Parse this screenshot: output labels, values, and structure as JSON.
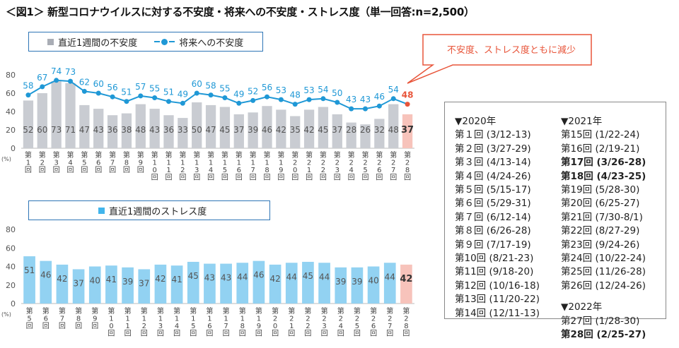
{
  "title": "＜図1＞ 新型コロナウイルスに対する不安度・将来への不安度・ストレス度（単一回答:n=2,500）",
  "callout": "不安度、ストレス度ともに減少",
  "colors": {
    "bar_gray": "#c9ccd2",
    "bar_gray_last": "#f7c3bb",
    "line": "#1f98d6",
    "line_last": "#e8553a",
    "bar_blue": "#92d2f2",
    "bar_blue_last": "#f7c3bb",
    "border": "#2e75b6",
    "callout_border": "#e8553a"
  },
  "legend_top": {
    "bar_label": "直近1週間の不安度",
    "line_label": "将来への不安度"
  },
  "legend_bottom": {
    "bar_label": "直近1週間のストレス度"
  },
  "chart_data": [
    {
      "type": "bar+line",
      "y_unit_label": "(%)",
      "ylim": [
        0,
        80
      ],
      "yticks": [
        "0",
        "20",
        "40",
        "60",
        "80"
      ],
      "categories": [
        "第1回",
        "第2回",
        "第3回",
        "第4回",
        "第5回",
        "第6回",
        "第7回",
        "第8回",
        "第9回",
        "第10回",
        "第11回",
        "第12回",
        "第13回",
        "第14回",
        "第15回",
        "第16回",
        "第17回",
        "第18回",
        "第19回",
        "第20回",
        "第21回",
        "第22回",
        "第23回",
        "第24回",
        "第25回",
        "第26回",
        "第27回",
        "第28回"
      ],
      "series": [
        {
          "name": "直近1週間の不安度",
          "kind": "bar",
          "values": [
            52,
            60,
            73,
            71,
            47,
            43,
            36,
            38,
            48,
            43,
            36,
            33,
            50,
            47,
            45,
            37,
            39,
            46,
            42,
            35,
            42,
            45,
            37,
            28,
            26,
            32,
            48,
            37
          ]
        },
        {
          "name": "将来への不安度",
          "kind": "line",
          "values": [
            58,
            67,
            74,
            73,
            62,
            60,
            56,
            51,
            57,
            55,
            51,
            49,
            60,
            58,
            55,
            49,
            52,
            56,
            53,
            48,
            53,
            54,
            50,
            43,
            43,
            46,
            54,
            48
          ]
        }
      ]
    },
    {
      "type": "bar",
      "y_unit_label": "(%)",
      "ylim": [
        0,
        80
      ],
      "yticks": [
        "0",
        "20",
        "40",
        "60",
        "80"
      ],
      "categories": [
        "第5回",
        "第6回",
        "第7回",
        "第8回",
        "第9回",
        "第10回",
        "第11回",
        "第12回",
        "第13回",
        "第14回",
        "第15回",
        "第16回",
        "第17回",
        "第18回",
        "第19回",
        "第20回",
        "第21回",
        "第22回",
        "第23回",
        "第24回",
        "第25回",
        "第26回",
        "第27回",
        "第28回"
      ],
      "series": [
        {
          "name": "直近1週間のストレス度",
          "values": [
            51,
            46,
            42,
            37,
            40,
            41,
            39,
            37,
            42,
            41,
            45,
            43,
            43,
            44,
            46,
            42,
            44,
            45,
            44,
            39,
            39,
            40,
            44,
            42
          ]
        }
      ]
    }
  ],
  "schedule": {
    "col1": {
      "header": "▼2020年",
      "rows": [
        {
          "label": "第１回",
          "date": "(3/12-13)"
        },
        {
          "label": "第２回",
          "date": "(3/27-29)"
        },
        {
          "label": "第３回",
          "date": "(4/13-14)"
        },
        {
          "label": "第４回",
          "date": "(4/24-26)"
        },
        {
          "label": "第５回",
          "date": "(5/15-17)"
        },
        {
          "label": "第６回",
          "date": "(5/29-31)"
        },
        {
          "label": "第７回",
          "date": "(6/12-14)"
        },
        {
          "label": "第８回",
          "date": "(6/26-28)"
        },
        {
          "label": "第９回",
          "date": "(7/17-19)"
        },
        {
          "label": "第10回",
          "date": "(8/21-23)"
        },
        {
          "label": "第11回",
          "date": "(9/18-20)"
        },
        {
          "label": "第12回",
          "date": "(10/16-18)"
        },
        {
          "label": "第13回",
          "date": "(11/20-22)"
        },
        {
          "label": "第14回",
          "date": "(12/11-13)"
        }
      ]
    },
    "col2": {
      "header": "▼2021年",
      "rows": [
        {
          "label": "第15回",
          "date": "(1/22-24)"
        },
        {
          "label": "第16回",
          "date": "(2/19-21)"
        },
        {
          "label": "第17回",
          "date": "(3/26-28)"
        },
        {
          "label": "第18回",
          "date": "(4/23-25)"
        },
        {
          "label": "第19回",
          "date": "(5/28-30)"
        },
        {
          "label": "第20回",
          "date": "(6/25-27)"
        },
        {
          "label": "第21回",
          "date": "(7/30-8/1)"
        },
        {
          "label": "第22回",
          "date": "(8/27-29)"
        },
        {
          "label": "第23回",
          "date": "(9/24-26)"
        },
        {
          "label": "第24回",
          "date": "(10/22-24)"
        },
        {
          "label": "第25回",
          "date": "(11/26-28)"
        },
        {
          "label": "第26回",
          "date": "(12/24-26)"
        }
      ],
      "header2": "▼2022年",
      "rows2": [
        {
          "label": "第27回",
          "date": "(1/28-30)"
        },
        {
          "label": "第28回",
          "date": "(2/25-27)"
        }
      ]
    }
  }
}
